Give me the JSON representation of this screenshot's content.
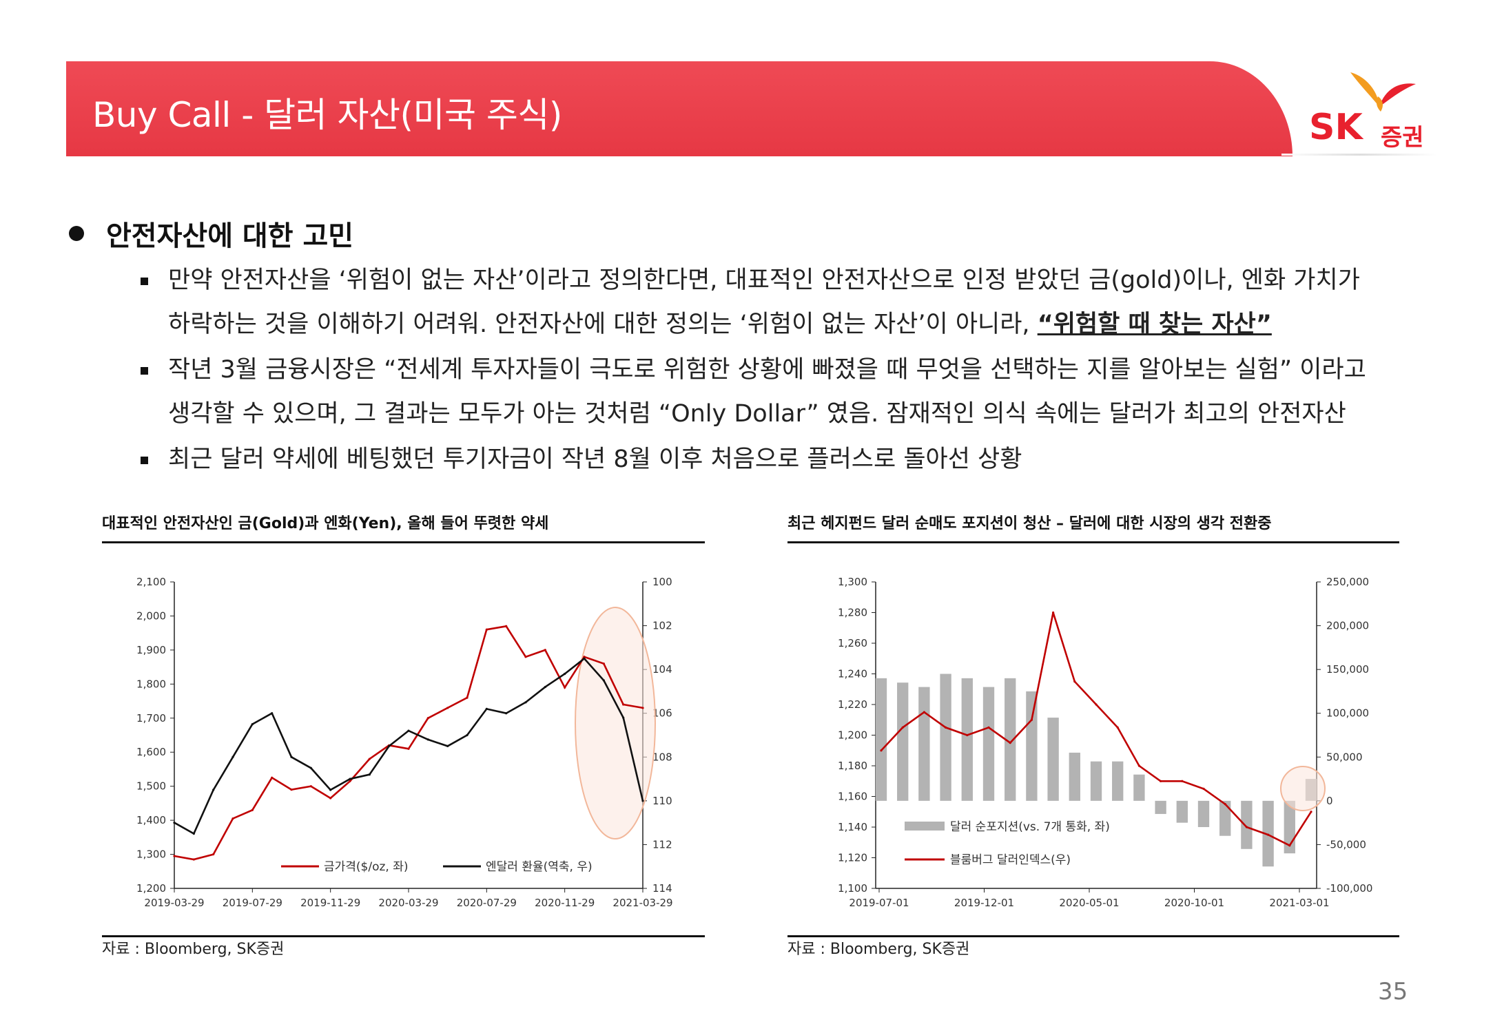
{
  "header": {
    "title": "Buy Call - 달러 자산(미국 주식)"
  },
  "logo": {
    "sk": "SK",
    "brand": "증권",
    "brand_color": "#e8212e"
  },
  "section": {
    "heading": "안전자산에 대한 고민",
    "bullets": [
      {
        "line1": "만약 안전자산을 ‘위험이 없는 자산’이라고 정의한다면, 대표적인 안전자산으로 인정 받았던 금(gold)이나, 엔화 가치가",
        "line2": "하락하는 것을 이해하기 어려워. 안전자산에 대한 정의는 ‘위험이 없는 자산’이 아니라, ",
        "emph": "“위험할 때 찾는 자산”"
      },
      {
        "line1": "작년 3월 금융시장은 “전세계 투자자들이 극도로 위험한 상황에 빠졌을 때 무엇을 선택하는 지를 알아보는 실험” 이라고",
        "line2": "생각할 수 있으며, 그 결과는 모두가 아는 것처럼 “Only Dollar” 였음. 잠재적인 의식 속에는 달러가 최고의 안전자산"
      },
      {
        "line1": "최근 달러 약세에 베팅했던 투기자금이 작년 8월 이후 처음으로 플러스로 돌아선 상황"
      }
    ]
  },
  "charts": {
    "left": {
      "title": "대표적인 안전자산인 금(Gold)과 엔화(Yen), 올해 들어 뚜렷한 약세",
      "source": "자료 : Bloomberg, SK증권"
    },
    "right": {
      "title": "최근 헤지펀드 달러 순매도 포지션이 청산 – 달러에 대한 시장의 생각 전환중",
      "source": "자료 : Bloomberg, SK증권"
    }
  },
  "page_number": "35",
  "colors": {
    "red": "#c00000",
    "black": "#111111",
    "gray_bar": "#b3b3b3",
    "highlight": "#f2b79a"
  },
  "chart_data": [
    {
      "type": "line",
      "title": "대표적인 안전자산인 금(Gold)과 엔화(Yen), 올해 들어 뚜렷한 약세",
      "x_ticks": [
        "2019-03-29",
        "2019-07-29",
        "2019-11-29",
        "2020-03-29",
        "2020-07-29",
        "2020-11-29",
        "2021-03-29"
      ],
      "y_left": {
        "min": 1200,
        "max": 2100,
        "ticks": [
          "1,200",
          "1,300",
          "1,400",
          "1,500",
          "1,600",
          "1,700",
          "1,800",
          "1,900",
          "2,000",
          "2,100"
        ]
      },
      "y_right": {
        "min": 100,
        "max": 114,
        "inverted": true,
        "ticks": [
          "100",
          "102",
          "104",
          "106",
          "108",
          "110",
          "112",
          "114"
        ]
      },
      "x": [
        "2019-03-29",
        "2019-04-29",
        "2019-05-29",
        "2019-06-29",
        "2019-07-29",
        "2019-08-29",
        "2019-09-29",
        "2019-10-29",
        "2019-11-29",
        "2019-12-29",
        "2020-01-29",
        "2020-02-29",
        "2020-03-29",
        "2020-04-29",
        "2020-05-29",
        "2020-06-29",
        "2020-07-29",
        "2020-08-29",
        "2020-09-29",
        "2020-10-29",
        "2020-11-29",
        "2020-12-29",
        "2021-01-29",
        "2021-02-28",
        "2021-03-29"
      ],
      "series": [
        {
          "name": "금가격($/oz, 좌)",
          "axis": "left",
          "color": "#c00000",
          "values": [
            1295,
            1285,
            1300,
            1405,
            1430,
            1525,
            1490,
            1500,
            1465,
            1515,
            1580,
            1620,
            1610,
            1700,
            1730,
            1760,
            1960,
            1970,
            1880,
            1900,
            1790,
            1880,
            1860,
            1740,
            1730
          ]
        },
        {
          "name": "엔달러 환율(역축, 우)",
          "axis": "right",
          "inverted": true,
          "color": "#111111",
          "values": [
            111.0,
            111.5,
            109.5,
            108.0,
            106.5,
            106.0,
            108.0,
            108.5,
            109.5,
            109.0,
            108.8,
            107.5,
            106.8,
            107.2,
            107.5,
            107.0,
            105.8,
            106.0,
            105.5,
            104.8,
            104.2,
            103.5,
            104.5,
            106.2,
            110.0
          ]
        }
      ]
    },
    {
      "type": "bar",
      "title": "최근 헤지펀드 달러 순매도 포지션이 청산 – 달러에 대한 시장의 생각 전환중",
      "x_ticks": [
        "2019-07-01",
        "2019-12-01",
        "2020-05-01",
        "2020-10-01",
        "2021-03-01"
      ],
      "y_left": {
        "min": 1100,
        "max": 1300,
        "ticks": [
          "1,100",
          "1,120",
          "1,140",
          "1,160",
          "1,180",
          "1,200",
          "1,220",
          "1,240",
          "1,260",
          "1,280",
          "1,300"
        ]
      },
      "y_right": {
        "min": -100000,
        "max": 250000,
        "ticks": [
          "-100,000",
          "-50,000",
          "0",
          "50,000",
          "100,000",
          "150,000",
          "200,000",
          "250,000"
        ]
      },
      "x": [
        "2019-07",
        "2019-08",
        "2019-09",
        "2019-10",
        "2019-11",
        "2019-12",
        "2020-01",
        "2020-02",
        "2020-03",
        "2020-04",
        "2020-05",
        "2020-06",
        "2020-07",
        "2020-08",
        "2020-09",
        "2020-10",
        "2020-11",
        "2020-12",
        "2021-01",
        "2021-02",
        "2021-03"
      ],
      "series": [
        {
          "name": "달러 순포지션(vs. 7개 통화, 좌)",
          "axis": "right",
          "color": "#b3b3b3",
          "values": [
            140000,
            135000,
            130000,
            145000,
            140000,
            130000,
            140000,
            125000,
            95000,
            55000,
            45000,
            45000,
            30000,
            -15000,
            -25000,
            -30000,
            -40000,
            -55000,
            -75000,
            -60000,
            25000
          ]
        },
        {
          "name": "블룸버그 달러인덱스(우)",
          "axis": "left",
          "color": "#c00000",
          "values": [
            1190,
            1205,
            1215,
            1205,
            1200,
            1205,
            1195,
            1210,
            1280,
            1235,
            1220,
            1205,
            1180,
            1170,
            1170,
            1165,
            1155,
            1140,
            1135,
            1128,
            1150
          ]
        }
      ]
    }
  ]
}
